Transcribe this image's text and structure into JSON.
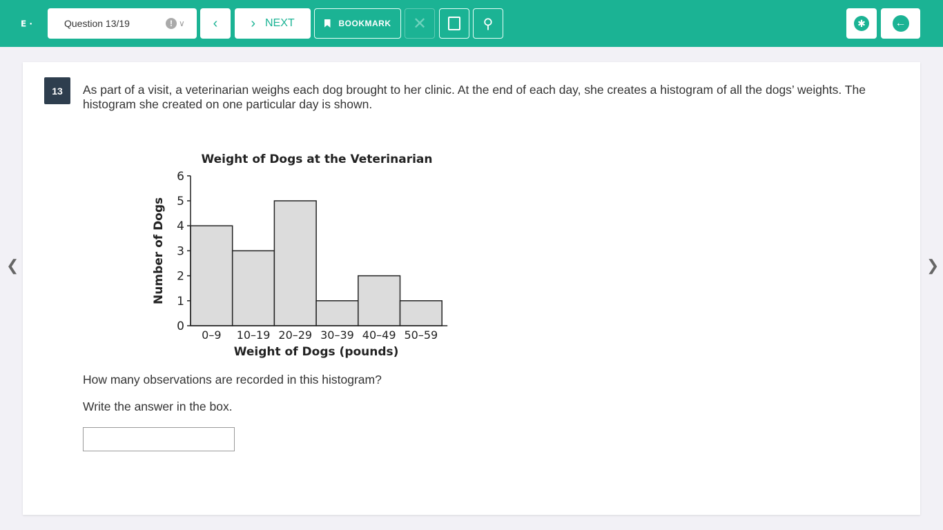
{
  "header": {
    "logo": "E",
    "question_selector": "Question 13/19",
    "next_label": "NEXT",
    "bookmark_label": "BOOKMARK"
  },
  "question": {
    "number": "13",
    "stem": "As part of a visit, a veterinarian weighs each dog brought to her clinic. At the end of each day, she creates a histogram of all the dogs’ weights. The histogram she created on one particular day is shown.",
    "prompt": "How many observations are recorded in this histogram?",
    "instruction": "Write the answer in the box.",
    "answer_value": ""
  },
  "chart_data": {
    "type": "bar",
    "title": "Weight of Dogs at the Veterinarian",
    "xlabel": "Weight of Dogs (pounds)",
    "ylabel": "Number of Dogs",
    "categories": [
      "0–9",
      "10–19",
      "20–29",
      "30–39",
      "40–49",
      "50–59"
    ],
    "values": [
      4,
      3,
      5,
      1,
      2,
      1
    ],
    "ylim": [
      0,
      6
    ],
    "yticks": [
      "0",
      "1",
      "2",
      "3",
      "4",
      "5",
      "6"
    ],
    "bar_color": "#dcdcdc"
  },
  "colors": {
    "brand": "#1bb394",
    "badge": "#2e3e4e"
  }
}
